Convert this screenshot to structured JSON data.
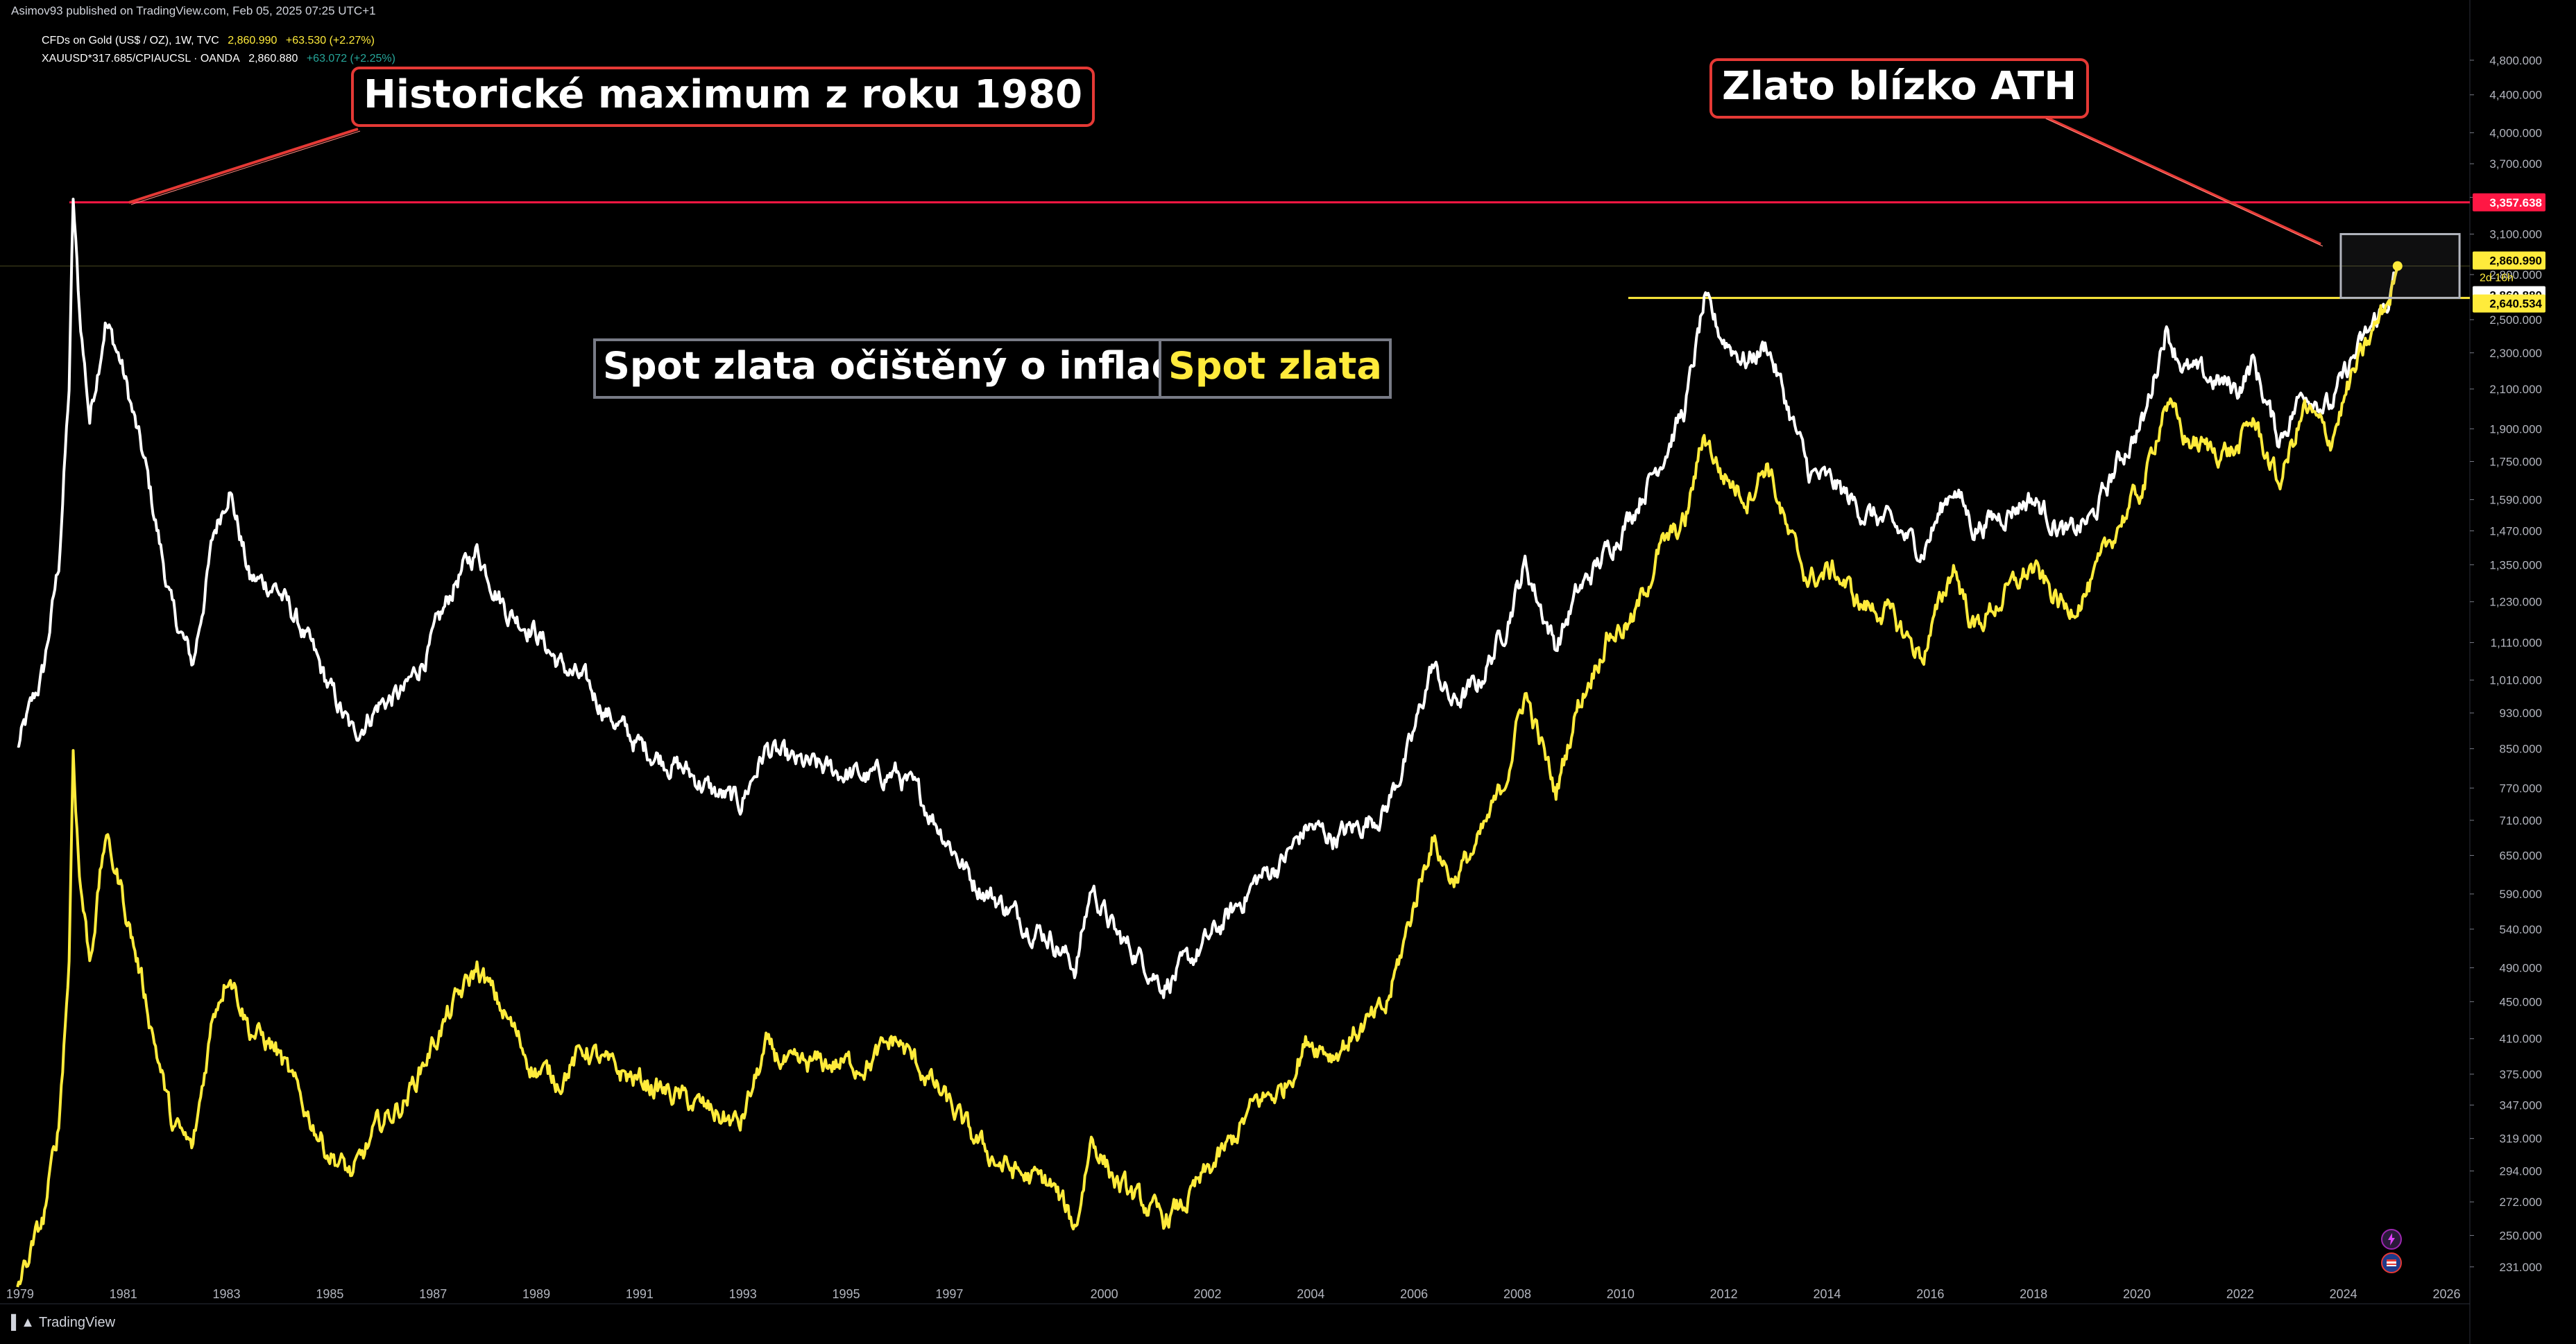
{
  "header": {
    "publish_line": "Asimov93 published on TradingView.com, Feb 05, 2025 07:25 UTC+1"
  },
  "legend": {
    "row1": {
      "symbol": "CFDs on Gold (US$ / OZ), 1W, TVC",
      "price": "2,860.990",
      "change": "+63.530 (+2.27%)"
    },
    "row2": {
      "symbol": "XAUUSD*317.685/CPIAUCSL · OANDA",
      "price": "2,860.880",
      "change": "+63.072 (+2.25%)"
    }
  },
  "annotations": {
    "ath_1980": "Historické maximum z roku 1980",
    "near_ath": "Zlato blízko ATH",
    "legend_white": "Spot zlata očištěný o inflaci",
    "legend_yellow": "Spot zlata"
  },
  "price_labels": {
    "ath_line": "3,357.638",
    "gold_close": "2,860.990",
    "countdown": "2d 16h",
    "real_close": "2,860.880",
    "prior_high": "2,640.534"
  },
  "brand": "TradingView",
  "colors": {
    "background": "#000000",
    "gold_series": "#ffeb3b",
    "real_series": "#ffffff",
    "ath_line": "#ff1744",
    "annotation_border": "#e53935"
  },
  "chart_data": {
    "type": "line",
    "scale": "log",
    "interval": "1W",
    "x_range": [
      1978.85,
      2026.5
    ],
    "y_range": [
      218,
      5300
    ],
    "x_ticks": [
      "1979",
      "1981",
      "1983",
      "1985",
      "1987",
      "1989",
      "1991",
      "1993",
      "1995",
      "1997",
      "2000",
      "2002",
      "2004",
      "2006",
      "2008",
      "2010",
      "2012",
      "2014",
      "2016",
      "2018",
      "2020",
      "2022",
      "2024",
      "2026"
    ],
    "y_ticks": [
      "4,800.000",
      "4,400.000",
      "4,000.000",
      "3,700.000",
      "3,400.000",
      "3,100.000",
      "2,800.000",
      "2,500.000",
      "2,300.000",
      "2,100.000",
      "1,900.000",
      "1,750.000",
      "1,590.000",
      "1,470.000",
      "1,350.000",
      "1,230.000",
      "1,110.000",
      "1,010.000",
      "930.000",
      "850.000",
      "770.000",
      "710.000",
      "650.000",
      "590.000",
      "540.000",
      "490.000",
      "450.000",
      "410.000",
      "375.000",
      "347.000",
      "319.000",
      "294.000",
      "272.000",
      "250.000",
      "231.000"
    ],
    "horizontal_lines": [
      {
        "value": 3357.638,
        "color": "#ff1744"
      },
      {
        "value": 2640.534,
        "color": "#ffeb3b",
        "from_year": 2010.2
      }
    ],
    "series": [
      {
        "name": "Spot zlata očištěný o inflaci",
        "color": "#ffffff",
        "points": [
          [
            1979.0,
            850
          ],
          [
            1979.5,
            1030
          ],
          [
            1979.8,
            1350
          ],
          [
            1980.0,
            2100
          ],
          [
            1980.08,
            3357
          ],
          [
            1980.2,
            2550
          ],
          [
            1980.4,
            1950
          ],
          [
            1980.7,
            2500
          ],
          [
            1981.0,
            2250
          ],
          [
            1981.5,
            1700
          ],
          [
            1982.0,
            1200
          ],
          [
            1982.4,
            1050
          ],
          [
            1982.8,
            1450
          ],
          [
            1983.1,
            1650
          ],
          [
            1983.5,
            1300
          ],
          [
            1984.0,
            1280
          ],
          [
            1984.5,
            1150
          ],
          [
            1985.0,
            1000
          ],
          [
            1985.5,
            880
          ],
          [
            1986.0,
            950
          ],
          [
            1986.5,
            980
          ],
          [
            1987.0,
            1100
          ],
          [
            1987.5,
            1300
          ],
          [
            1987.9,
            1400
          ],
          [
            1988.5,
            1200
          ],
          [
            1989.0,
            1150
          ],
          [
            1989.5,
            1050
          ],
          [
            1990.0,
            1000
          ],
          [
            1990.5,
            920
          ],
          [
            1991.0,
            860
          ],
          [
            1991.5,
            830
          ],
          [
            1992.0,
            800
          ],
          [
            1992.5,
            760
          ],
          [
            1993.0,
            740
          ],
          [
            1993.5,
            850
          ],
          [
            1994.0,
            820
          ],
          [
            1994.5,
            810
          ],
          [
            1995.0,
            800
          ],
          [
            1995.5,
            790
          ],
          [
            1996.0,
            800
          ],
          [
            1996.5,
            750
          ],
          [
            1997.0,
            680
          ],
          [
            1997.5,
            610
          ],
          [
            1998.0,
            580
          ],
          [
            1998.5,
            550
          ],
          [
            1999.0,
            530
          ],
          [
            1999.5,
            490
          ],
          [
            1999.8,
            600
          ],
          [
            2000.3,
            530
          ],
          [
            2000.8,
            500
          ],
          [
            2001.2,
            470
          ],
          [
            2001.6,
            490
          ],
          [
            2002.0,
            520
          ],
          [
            2002.5,
            560
          ],
          [
            2003.0,
            610
          ],
          [
            2003.5,
            640
          ],
          [
            2004.0,
            700
          ],
          [
            2004.5,
            680
          ],
          [
            2005.0,
            700
          ],
          [
            2005.5,
            730
          ],
          [
            2006.0,
            860
          ],
          [
            2006.4,
            1050
          ],
          [
            2006.8,
            950
          ],
          [
            2007.3,
            1000
          ],
          [
            2007.8,
            1150
          ],
          [
            2008.2,
            1350
          ],
          [
            2008.8,
            1100
          ],
          [
            2009.2,
            1250
          ],
          [
            2009.8,
            1400
          ],
          [
            2010.3,
            1550
          ],
          [
            2010.8,
            1750
          ],
          [
            2011.3,
            2000
          ],
          [
            2011.67,
            2600
          ],
          [
            2012.0,
            2400
          ],
          [
            2012.5,
            2250
          ],
          [
            2012.9,
            2350
          ],
          [
            2013.3,
            2000
          ],
          [
            2013.7,
            1700
          ],
          [
            2014.2,
            1650
          ],
          [
            2014.7,
            1550
          ],
          [
            2015.2,
            1500
          ],
          [
            2015.9,
            1400
          ],
          [
            2016.5,
            1650
          ],
          [
            2016.9,
            1480
          ],
          [
            2017.5,
            1540
          ],
          [
            2018.0,
            1600
          ],
          [
            2018.7,
            1450
          ],
          [
            2019.2,
            1520
          ],
          [
            2019.7,
            1750
          ],
          [
            2020.2,
            1950
          ],
          [
            2020.6,
            2450
          ],
          [
            2021.0,
            2200
          ],
          [
            2021.5,
            2150
          ],
          [
            2022.0,
            2100
          ],
          [
            2022.3,
            2250
          ],
          [
            2022.8,
            1850
          ],
          [
            2023.3,
            2100
          ],
          [
            2023.8,
            2000
          ],
          [
            2024.2,
            2250
          ],
          [
            2024.6,
            2450
          ],
          [
            2024.95,
            2650
          ],
          [
            2025.1,
            2860.88
          ]
        ]
      },
      {
        "name": "Spot zlata",
        "color": "#ffeb3b",
        "points": [
          [
            1979.0,
            220
          ],
          [
            1979.5,
            260
          ],
          [
            1979.8,
            330
          ],
          [
            1980.0,
            500
          ],
          [
            1980.08,
            850
          ],
          [
            1980.2,
            620
          ],
          [
            1980.4,
            500
          ],
          [
            1980.7,
            680
          ],
          [
            1981.0,
            600
          ],
          [
            1981.5,
            450
          ],
          [
            1982.0,
            330
          ],
          [
            1982.4,
            310
          ],
          [
            1982.8,
            440
          ],
          [
            1983.1,
            490
          ],
          [
            1983.5,
            420
          ],
          [
            1984.0,
            400
          ],
          [
            1984.5,
            350
          ],
          [
            1985.0,
            310
          ],
          [
            1985.5,
            290
          ],
          [
            1986.0,
            330
          ],
          [
            1986.5,
            350
          ],
          [
            1987.0,
            400
          ],
          [
            1987.5,
            450
          ],
          [
            1987.9,
            490
          ],
          [
            1988.5,
            430
          ],
          [
            1989.0,
            380
          ],
          [
            1989.5,
            370
          ],
          [
            1990.0,
            400
          ],
          [
            1990.5,
            380
          ],
          [
            1991.0,
            370
          ],
          [
            1991.5,
            360
          ],
          [
            1992.0,
            350
          ],
          [
            1992.5,
            340
          ],
          [
            1993.0,
            330
          ],
          [
            1993.5,
            400
          ],
          [
            1994.0,
            380
          ],
          [
            1994.5,
            385
          ],
          [
            1995.0,
            385
          ],
          [
            1995.5,
            385
          ],
          [
            1996.0,
            410
          ],
          [
            1996.5,
            380
          ],
          [
            1997.0,
            350
          ],
          [
            1997.5,
            320
          ],
          [
            1998.0,
            300
          ],
          [
            1998.5,
            290
          ],
          [
            1999.0,
            285
          ],
          [
            1999.5,
            255
          ],
          [
            1999.8,
            320
          ],
          [
            2000.3,
            285
          ],
          [
            2000.8,
            270
          ],
          [
            2001.2,
            260
          ],
          [
            2001.6,
            270
          ],
          [
            2002.0,
            290
          ],
          [
            2002.5,
            315
          ],
          [
            2003.0,
            350
          ],
          [
            2003.5,
            360
          ],
          [
            2004.0,
            410
          ],
          [
            2004.5,
            395
          ],
          [
            2005.0,
            420
          ],
          [
            2005.5,
            440
          ],
          [
            2006.0,
            560
          ],
          [
            2006.4,
            680
          ],
          [
            2006.8,
            610
          ],
          [
            2007.3,
            670
          ],
          [
            2007.8,
            780
          ],
          [
            2008.2,
            980
          ],
          [
            2008.8,
            760
          ],
          [
            2009.2,
            940
          ],
          [
            2009.8,
            1130
          ],
          [
            2010.3,
            1170
          ],
          [
            2010.8,
            1400
          ],
          [
            2011.3,
            1500
          ],
          [
            2011.67,
            1880
          ],
          [
            2012.0,
            1700
          ],
          [
            2012.5,
            1600
          ],
          [
            2012.9,
            1750
          ],
          [
            2013.3,
            1450
          ],
          [
            2013.7,
            1300
          ],
          [
            2014.2,
            1330
          ],
          [
            2014.7,
            1220
          ],
          [
            2015.2,
            1200
          ],
          [
            2015.9,
            1070
          ],
          [
            2016.5,
            1350
          ],
          [
            2016.9,
            1150
          ],
          [
            2017.5,
            1250
          ],
          [
            2018.0,
            1340
          ],
          [
            2018.7,
            1200
          ],
          [
            2019.2,
            1290
          ],
          [
            2019.7,
            1500
          ],
          [
            2020.2,
            1650
          ],
          [
            2020.6,
            2050
          ],
          [
            2021.0,
            1850
          ],
          [
            2021.5,
            1800
          ],
          [
            2022.0,
            1800
          ],
          [
            2022.3,
            1950
          ],
          [
            2022.8,
            1650
          ],
          [
            2023.3,
            2000
          ],
          [
            2023.8,
            1850
          ],
          [
            2024.2,
            2150
          ],
          [
            2024.6,
            2400
          ],
          [
            2024.95,
            2650
          ],
          [
            2025.1,
            2860.99
          ]
        ]
      }
    ]
  }
}
